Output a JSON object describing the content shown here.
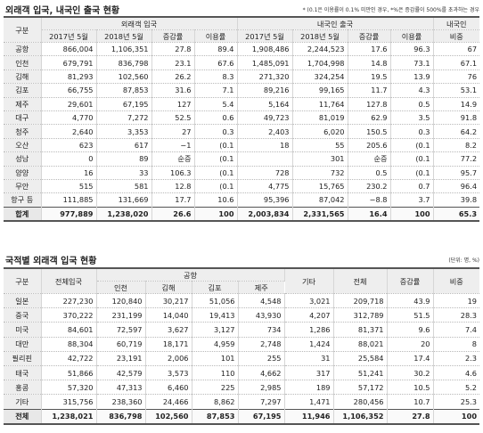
{
  "table1": {
    "title": "외래객 입국, 내국인 출국 현황",
    "note": "* (0.1은 이용률이 0.1% 미만인 경우, *%은 증감률이 500%를 초과하는 경우",
    "headers": {
      "group": "구분",
      "foreign": "외래객 입국",
      "domestic": "내국인 출국",
      "dom_share_1": "내국인",
      "dom_share_2": "비중",
      "cols": [
        "2017년 5월",
        "2018년 5월",
        "증감률",
        "이용률",
        "2017년 5월",
        "2018년 5월",
        "증감률",
        "이용률"
      ]
    },
    "rows": [
      [
        "공항",
        "866,004",
        "1,106,351",
        "27.8",
        "89.4",
        "1,908,486",
        "2,244,523",
        "17.6",
        "96.3",
        "67"
      ],
      [
        "인천",
        "679,791",
        "836,798",
        "23.1",
        "67.6",
        "1,485,091",
        "1,704,998",
        "14.8",
        "73.1",
        "67.1"
      ],
      [
        "김해",
        "81,293",
        "102,560",
        "26.2",
        "8.3",
        "271,320",
        "324,254",
        "19.5",
        "13.9",
        "76"
      ],
      [
        "김포",
        "66,755",
        "87,853",
        "31.6",
        "7.1",
        "89,216",
        "99,165",
        "11.7",
        "4.3",
        "53.1"
      ],
      [
        "제주",
        "29,601",
        "67,195",
        "127",
        "5.4",
        "5,164",
        "11,764",
        "127.8",
        "0.5",
        "14.9"
      ],
      [
        "대구",
        "4,770",
        "7,272",
        "52.5",
        "0.6",
        "49,723",
        "81,019",
        "62.9",
        "3.5",
        "91.8"
      ],
      [
        "청주",
        "2,640",
        "3,353",
        "27",
        "0.3",
        "2,403",
        "6,020",
        "150.5",
        "0.3",
        "64.2"
      ],
      [
        "오산",
        "623",
        "617",
        "−1",
        "(0.1",
        "18",
        "55",
        "205.6",
        "(0.1",
        "8.2"
      ],
      [
        "성남",
        "0",
        "89",
        "순증",
        "(0.1",
        "",
        "301",
        "순증",
        "(0.1",
        "77.2"
      ],
      [
        "양양",
        "16",
        "33",
        "106.3",
        "(0.1",
        "728",
        "732",
        "0.5",
        "(0.1",
        "95.7"
      ],
      [
        "무안",
        "515",
        "581",
        "12.8",
        "(0.1",
        "4,775",
        "15,765",
        "230.2",
        "0.7",
        "96.4"
      ],
      [
        "항구 등",
        "111,885",
        "131,669",
        "17.7",
        "10.6",
        "95,396",
        "87,042",
        "−8.8",
        "3.7",
        "39.8"
      ]
    ],
    "total": [
      "합계",
      "977,889",
      "1,238,020",
      "26.6",
      "100",
      "2,003,834",
      "2,331,565",
      "16.4",
      "100",
      "65.3"
    ]
  },
  "table2": {
    "title": "국적별 외래객 입국 현황",
    "note": "(단위: 명, %)",
    "headers": {
      "group": "구분",
      "entry": "전체입국",
      "airport": "공항",
      "incheon": "인천",
      "gimhae": "김해",
      "gimpo": "김포",
      "jeju": "제주",
      "other": "기타",
      "all": "전체",
      "change": "증감률",
      "share": "비중"
    },
    "rows": [
      [
        "일본",
        "227,230",
        "120,840",
        "30,217",
        "51,056",
        "4,548",
        "3,021",
        "209,718",
        "43.9",
        "19"
      ],
      [
        "중국",
        "370,222",
        "231,199",
        "14,040",
        "19,413",
        "43,930",
        "4,207",
        "312,789",
        "51.5",
        "28.3"
      ],
      [
        "미국",
        "84,601",
        "72,597",
        "3,627",
        "3,127",
        "734",
        "1,286",
        "81,371",
        "9.6",
        "7.4"
      ],
      [
        "대만",
        "88,304",
        "60,719",
        "18,171",
        "4,959",
        "2,748",
        "1,424",
        "88,021",
        "20",
        "8"
      ],
      [
        "필리핀",
        "42,722",
        "23,191",
        "2,006",
        "101",
        "255",
        "31",
        "25,584",
        "17.4",
        "2.3"
      ],
      [
        "태국",
        "51,866",
        "42,579",
        "3,573",
        "110",
        "4,662",
        "317",
        "51,241",
        "30.2",
        "4.6"
      ],
      [
        "홍콩",
        "57,320",
        "47,313",
        "6,460",
        "225",
        "2,985",
        "189",
        "57,172",
        "10.5",
        "5.2"
      ],
      [
        "기타",
        "315,756",
        "238,360",
        "24,466",
        "8,862",
        "7,297",
        "1,471",
        "280,456",
        "10.7",
        "25.3"
      ]
    ],
    "total": [
      "전체",
      "1,238,021",
      "836,798",
      "102,560",
      "87,853",
      "67,195",
      "11,946",
      "1,106,352",
      "27.8",
      "100"
    ]
  }
}
